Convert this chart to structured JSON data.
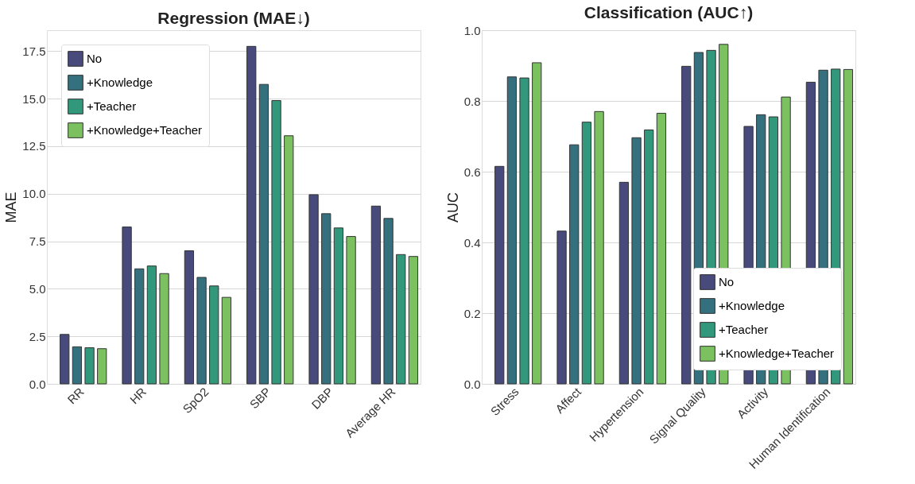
{
  "chart_data": [
    {
      "type": "bar",
      "title": "Regression (MAE↓)",
      "ylabel": "MAE",
      "categories": [
        "RR",
        "HR",
        "SpO2",
        "SBP",
        "DBP",
        "Average HR"
      ],
      "ylim": [
        0,
        18.6
      ],
      "yticks": [
        {
          "value": 0,
          "label": "0.0"
        },
        {
          "value": 2.5,
          "label": "2.5"
        },
        {
          "value": 5,
          "label": "5.0"
        },
        {
          "value": 7.5,
          "label": "7.5"
        },
        {
          "value": 10,
          "label": "10.0"
        },
        {
          "value": 12.5,
          "label": "12.5"
        },
        {
          "value": 15,
          "label": "15.0"
        },
        {
          "value": 17.5,
          "label": "17.5"
        }
      ],
      "grid": "y",
      "legend": "top left",
      "series": [
        {
          "name": "No",
          "color": "#484a7c",
          "values": [
            2.6,
            8.25,
            7.0,
            17.75,
            9.95,
            9.35
          ]
        },
        {
          "name": "+Knowledge",
          "color": "#35707f",
          "values": [
            1.95,
            6.05,
            5.6,
            15.75,
            8.95,
            8.7
          ]
        },
        {
          "name": "+Teacher",
          "color": "#32987b",
          "values": [
            1.9,
            6.2,
            5.15,
            14.9,
            8.2,
            6.8
          ]
        },
        {
          "name": "+Knowledge+Teacher",
          "color": "#7cc160",
          "values": [
            1.85,
            5.8,
            4.55,
            13.05,
            7.75,
            6.7
          ]
        }
      ]
    },
    {
      "type": "bar",
      "title": "Classification (AUC↑)",
      "ylabel": "AUC",
      "categories": [
        "Stress",
        "Affect",
        "Hypertension",
        "Signal Quality",
        "Activity",
        "Human Identification"
      ],
      "ylim": [
        0,
        1
      ],
      "yticks": [
        {
          "value": 0,
          "label": "0.0"
        },
        0.2,
        0.4,
        0.6,
        0.8,
        {
          "value": 1,
          "label": "1.0"
        }
      ],
      "grid": "y",
      "legend": "bottom right",
      "series": [
        {
          "name": "No",
          "color": "#484a7c",
          "values": [
            0.615,
            0.432,
            0.57,
            0.898,
            0.728,
            0.853
          ]
        },
        {
          "name": "+Knowledge",
          "color": "#35707f",
          "values": [
            0.868,
            0.676,
            0.696,
            0.937,
            0.761,
            0.887
          ]
        },
        {
          "name": "+Teacher",
          "color": "#32987b",
          "values": [
            0.865,
            0.74,
            0.718,
            0.943,
            0.755,
            0.89
          ]
        },
        {
          "name": "+Knowledge+Teacher",
          "color": "#7cc160",
          "values": [
            0.908,
            0.77,
            0.765,
            0.96,
            0.811,
            0.889
          ]
        }
      ]
    }
  ]
}
